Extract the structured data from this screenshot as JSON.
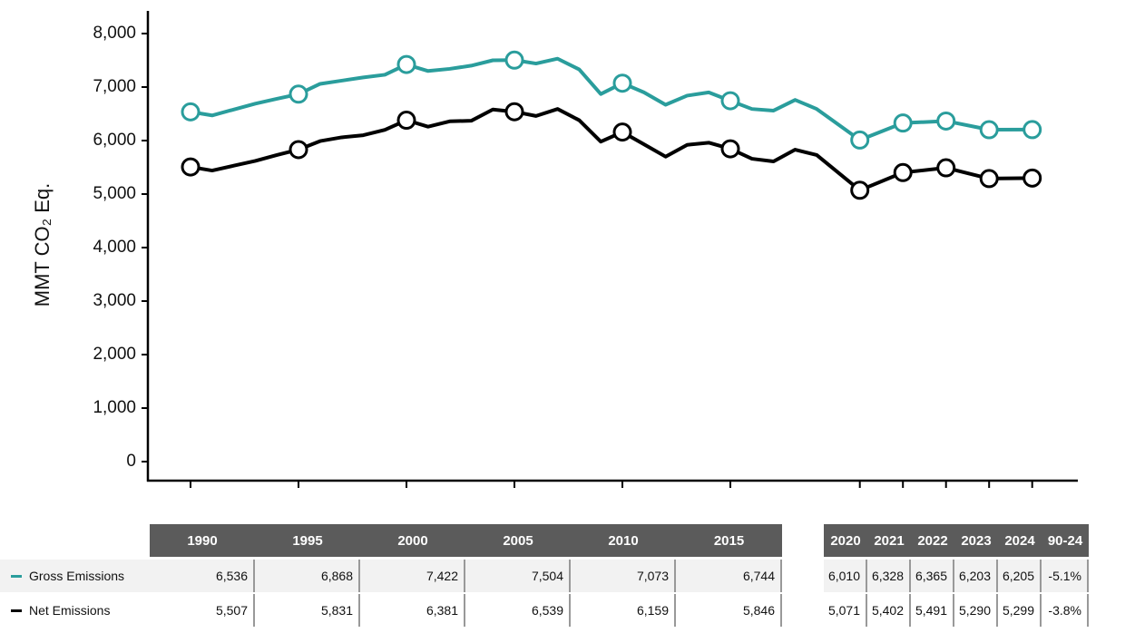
{
  "chart_data": {
    "type": "line",
    "ylabel": "MMT CO₂ Eq.",
    "x": [
      1990,
      1991,
      1992,
      1993,
      1994,
      1995,
      1996,
      1997,
      1998,
      1999,
      2000,
      2001,
      2002,
      2003,
      2004,
      2005,
      2006,
      2007,
      2008,
      2009,
      2010,
      2011,
      2012,
      2013,
      2014,
      2015,
      2016,
      2017,
      2018,
      2019,
      2020,
      2021,
      2022,
      2023,
      2024
    ],
    "series": [
      {
        "name": "Gross Emissions",
        "color": "#2a9d9c",
        "values": [
          6536,
          6470,
          6580,
          6690,
          6780,
          6868,
          7060,
          7120,
          7180,
          7230,
          7422,
          7300,
          7340,
          7400,
          7500,
          7504,
          7440,
          7530,
          7330,
          6870,
          7073,
          6900,
          6670,
          6840,
          6900,
          6744,
          6590,
          6560,
          6760,
          6590,
          6010,
          6328,
          6365,
          6203,
          6205
        ]
      },
      {
        "name": "Net Emissions",
        "color": "#000000",
        "values": [
          5507,
          5440,
          5530,
          5620,
          5730,
          5831,
          5990,
          6060,
          6100,
          6200,
          6381,
          6260,
          6360,
          6370,
          6580,
          6539,
          6460,
          6590,
          6380,
          5980,
          6159,
          5930,
          5700,
          5920,
          5960,
          5846,
          5660,
          5610,
          5830,
          5730,
          5071,
          5402,
          5491,
          5290,
          5299
        ]
      }
    ],
    "ylim": [
      0,
      8000
    ],
    "yticks": [
      0,
      {
        "value": 1000,
        "label": "1,000"
      },
      {
        "value": 2000,
        "label": "2,000"
      },
      {
        "value": 3000,
        "label": "3,000"
      },
      {
        "value": 4000,
        "label": "4,000"
      },
      {
        "value": 5000,
        "label": "5,000"
      },
      {
        "value": 6000,
        "label": "6,000"
      },
      {
        "value": 7000,
        "label": "7,000"
      },
      {
        "value": 8000,
        "label": "8,000"
      }
    ],
    "grid": false
  },
  "table": {
    "groups": [
      {
        "columns": [
          "1990",
          "1995",
          "2000",
          "2005",
          "2010",
          "2015"
        ],
        "rows": [
          [
            "6,536",
            "6,868",
            "7,422",
            "7,504",
            "7,073",
            "6,744"
          ],
          [
            "5,507",
            "5,831",
            "6,381",
            "6,539",
            "6,159",
            "5,846"
          ]
        ]
      },
      {
        "columns": [
          "2020",
          "2021",
          "2022",
          "2023",
          "2024",
          "90-24"
        ],
        "rows": [
          [
            "6,010",
            "6,328",
            "6,365",
            "6,203",
            "6,205",
            "-5.1%"
          ],
          [
            "5,071",
            "5,402",
            "5,491",
            "5,290",
            "5,299",
            "-3.8%"
          ]
        ]
      }
    ]
  }
}
